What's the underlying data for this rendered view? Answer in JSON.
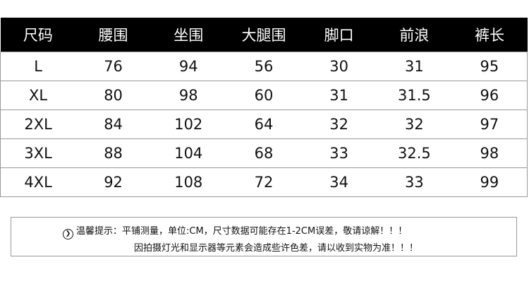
{
  "table": {
    "headers": [
      "尺码",
      "腰围",
      "坐围",
      "大腿围",
      "脚口",
      "前浪",
      "裤长"
    ],
    "rows": [
      [
        "L",
        "76",
        "94",
        "56",
        "30",
        "31",
        "95"
      ],
      [
        "XL",
        "80",
        "98",
        "60",
        "31",
        "31.5",
        "96"
      ],
      [
        "2XL",
        "84",
        "102",
        "64",
        "32",
        "32",
        "97"
      ],
      [
        "3XL",
        "88",
        "104",
        "68",
        "33",
        "32.5",
        "98"
      ],
      [
        "4XL",
        "92",
        "108",
        "72",
        "34",
        "33",
        "99"
      ]
    ]
  },
  "notice": {
    "icon": "chevron-right-circle-icon",
    "line1": "温馨提示：平铺测量，单位:CM，尺寸数据可能存在1-2CM误差，敬请谅解！！！",
    "line2": "因拍摄灯光和显示器等元素会造成些许色差，请以收到实物为准！！！"
  }
}
